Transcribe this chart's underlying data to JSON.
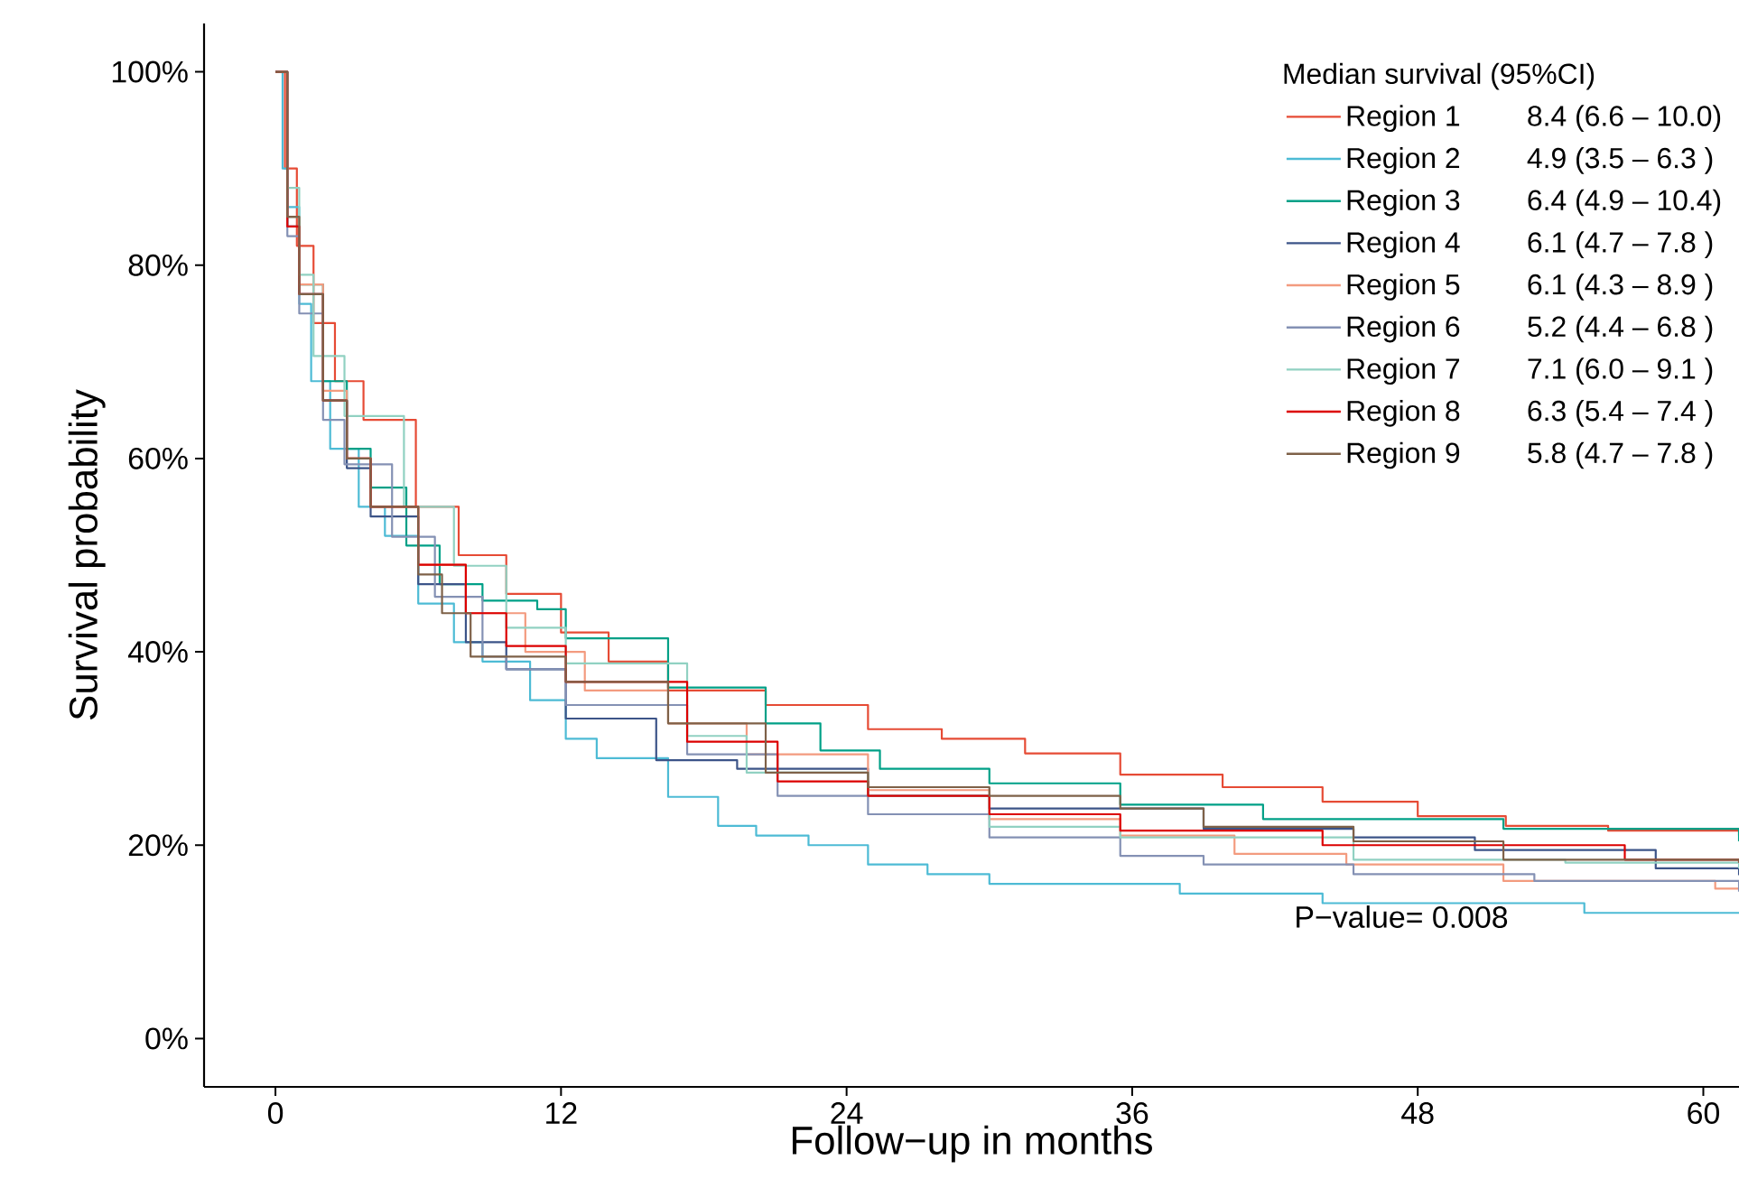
{
  "chart_data": {
    "type": "step",
    "xlabel": "Follow−up in months",
    "ylabel": "Survival probability",
    "legend_title": "Median survival (95%CI)",
    "legend": "top right",
    "grid": false,
    "xlim": [
      -3,
      61.5
    ],
    "ylim": [
      -5,
      105
    ],
    "xticks": [
      0,
      12,
      24,
      36,
      48,
      60
    ],
    "yticks": [
      {
        "value": 0,
        "label": "0%"
      },
      {
        "value": 20,
        "label": "20%"
      },
      {
        "value": 40,
        "label": "40%"
      },
      {
        "value": 60,
        "label": "60%"
      },
      {
        "value": 80,
        "label": "80%"
      },
      {
        "value": 100,
        "label": "100%"
      }
    ],
    "annotations": [
      "8.4  (6.6 – 10.0)",
      "4.9  (3.5 – 6.3  )",
      "6.4  (4.9 – 10.4)",
      "6.1  (4.7 – 7.8  )",
      "6.1  (4.3 – 8.9  )",
      "5.2  (4.4 – 6.8  )",
      "7.1  (6.0 – 9.1  )",
      "6.3  (5.4 – 7.4  )",
      "5.8  (4.7 – 7.8  )",
      "P−value= 0.008"
    ],
    "series": [
      {
        "name": "Region 1",
        "color": "#e64b35",
        "x": [
          0,
          0.4,
          0.9,
          1.6,
          2.5,
          3.7,
          5.9,
          7.7,
          9.7,
          12,
          14,
          16.5,
          20.6,
          24.9,
          28,
          31.5,
          35.5,
          39.8,
          44,
          48,
          51.7,
          56,
          61.5
        ],
        "values": [
          100,
          90,
          82,
          74,
          68,
          64,
          55,
          50,
          46,
          42,
          39,
          36,
          34.5,
          32,
          31,
          29.5,
          27.3,
          26,
          24.5,
          23,
          22,
          21.5,
          21
        ]
      },
      {
        "name": "Region 2",
        "color": "#4dbbd5",
        "x": [
          0,
          0.3,
          0.5,
          1,
          1.5,
          2.3,
          3.5,
          4.6,
          6,
          7.5,
          8.7,
          10.7,
          12.2,
          13.5,
          16.5,
          18.6,
          20.2,
          22.4,
          24.9,
          27.4,
          30,
          38,
          44,
          55,
          61.5
        ],
        "values": [
          100,
          90,
          86,
          76,
          68,
          61,
          55,
          52,
          45,
          41,
          39,
          35,
          31,
          29,
          25,
          22,
          21,
          20,
          18,
          17,
          16,
          15,
          14,
          13,
          13
        ]
      },
      {
        "name": "Region 3",
        "color": "#00a087",
        "x": [
          0,
          0.5,
          1,
          2,
          3,
          4,
          5.5,
          6.9,
          8.7,
          11,
          12.2,
          16.5,
          20.6,
          22.9,
          25.4,
          30,
          35.5,
          41.5,
          51.6,
          61.5
        ],
        "values": [
          100,
          85,
          78,
          68,
          61,
          57,
          51,
          47,
          45.3,
          44.4,
          41.4,
          36.3,
          32.6,
          29.8,
          27.9,
          26.4,
          24.2,
          22.7,
          21.7,
          20.4
        ]
      },
      {
        "name": "Region 4",
        "color": "#3c5488",
        "x": [
          0,
          0.5,
          1,
          2,
          3,
          4,
          6,
          8,
          9.7,
          12.2,
          16,
          19.4,
          24.9,
          30,
          39,
          45.3,
          50.4,
          58,
          61.5
        ],
        "values": [
          100,
          84,
          77,
          66,
          59,
          54,
          47,
          41,
          38.2,
          33.1,
          28.8,
          27.9,
          25.1,
          23.8,
          21.7,
          20.8,
          19.5,
          17.6,
          16.9
        ]
      },
      {
        "name": "Region 5",
        "color": "#f39b7f",
        "x": [
          0,
          0.5,
          1,
          2,
          3,
          4,
          6,
          8,
          10.5,
          13,
          16.5,
          19.8,
          24.9,
          30,
          35.5,
          40.3,
          45,
          51.6,
          60.5,
          61.5
        ],
        "values": [
          100,
          85,
          78,
          67,
          60,
          55,
          49,
          44,
          40,
          36,
          32.6,
          29.4,
          25.7,
          22.7,
          21,
          19.1,
          18,
          16.3,
          15.5,
          15.5
        ]
      },
      {
        "name": "Region 6",
        "color": "#8491b4",
        "x": [
          0,
          0.5,
          1,
          2,
          2.9,
          4.9,
          6.7,
          8.7,
          9.7,
          12.2,
          17.3,
          21.1,
          24.9,
          30,
          35.5,
          39,
          45.3,
          52.9,
          61.5
        ],
        "values": [
          100,
          83,
          75,
          64,
          59.4,
          51.9,
          45.7,
          39.5,
          38.2,
          34.5,
          29.4,
          25.1,
          23.2,
          20.8,
          18.9,
          18,
          17,
          16.3,
          15.2
        ]
      },
      {
        "name": "Region 7",
        "color": "#91d1c2",
        "x": [
          0,
          0.5,
          1,
          1.6,
          2.9,
          5.4,
          7.5,
          9.7,
          12.2,
          17.3,
          19.8,
          24.9,
          30,
          35.5,
          45.3,
          54.2,
          61.5
        ],
        "values": [
          100,
          88,
          79,
          70.6,
          64.4,
          55,
          48.9,
          42.5,
          38.8,
          31.3,
          27.5,
          25.1,
          21.9,
          20.8,
          18.5,
          18.2,
          17.6
        ]
      },
      {
        "name": "Region 8",
        "color": "#dc0000",
        "x": [
          0,
          0.5,
          1,
          2,
          3,
          4,
          6,
          8,
          9.7,
          12.2,
          17.3,
          21.1,
          24.9,
          30,
          35.5,
          44,
          56.7,
          61.5
        ],
        "values": [
          100,
          84,
          77,
          66,
          60,
          55,
          49,
          44,
          40.6,
          36.9,
          30.7,
          26.6,
          25.1,
          23.2,
          21.5,
          20,
          18.5,
          18.2
        ]
      },
      {
        "name": "Region 9",
        "color": "#7e6148",
        "x": [
          0,
          0.5,
          1,
          2,
          3,
          4,
          6,
          7,
          8.2,
          12.2,
          16.5,
          20.6,
          24.9,
          30,
          35.5,
          39,
          45.3,
          51.6,
          61.5
        ],
        "values": [
          100,
          85,
          77,
          66,
          60,
          55,
          48,
          44,
          39.5,
          36.9,
          32.6,
          27.5,
          26,
          25.1,
          23.8,
          21.9,
          20.4,
          18.5,
          18.2
        ]
      }
    ]
  }
}
